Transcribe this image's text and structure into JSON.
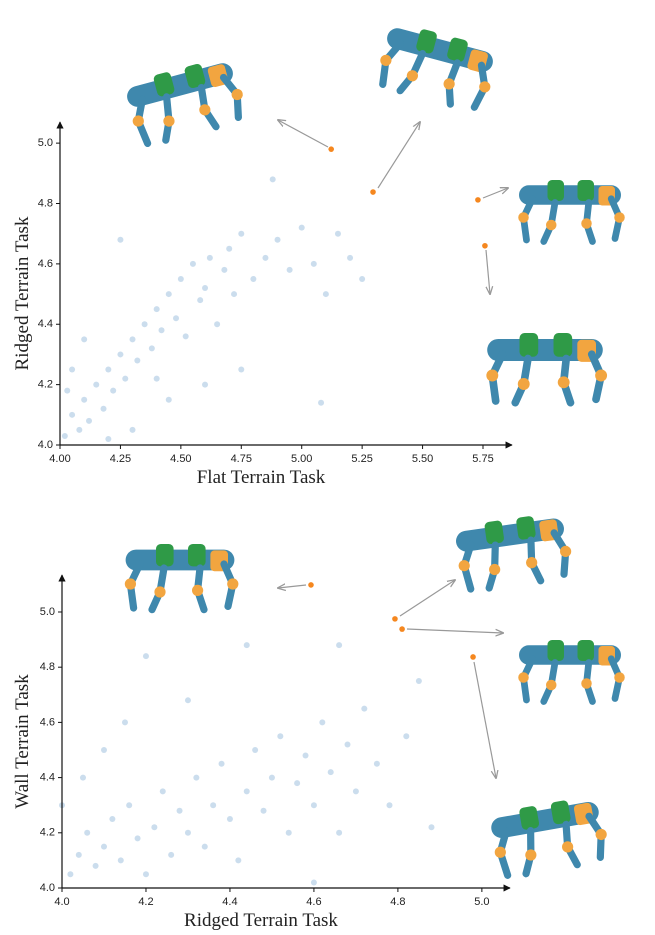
{
  "chart_data": [
    {
      "type": "scatter",
      "x_label": "Flat Terrain Task",
      "y_label": "Ridged Terrain Task",
      "xlim": [
        4.0,
        5.87
      ],
      "ylim": [
        4.0,
        5.07
      ],
      "xticks": [
        {
          "value": 4.0,
          "label": "4.00"
        },
        {
          "value": 4.25,
          "label": "4.25"
        },
        {
          "value": 4.5,
          "label": "4.50"
        },
        {
          "value": 4.75,
          "label": "4.75"
        },
        {
          "value": 5.0,
          "label": "5.00"
        },
        {
          "value": 5.25,
          "label": "5.25"
        },
        {
          "value": 5.5,
          "label": "5.50"
        },
        {
          "value": 5.75,
          "label": "5.75"
        }
      ],
      "yticks": [
        {
          "value": 4.0,
          "label": "4.0"
        },
        4.2,
        4.4,
        4.6,
        4.8,
        {
          "value": 5.0,
          "label": "5.0"
        }
      ],
      "series": [
        {
          "color": "#7eaad2",
          "x": [
            4.02,
            4.05,
            4.08,
            4.1,
            4.12,
            4.15,
            4.18,
            4.2,
            4.22,
            4.25,
            4.27,
            4.3,
            4.32,
            4.35,
            4.38,
            4.4,
            4.42,
            4.45,
            4.48,
            4.5,
            4.52,
            4.55,
            4.58,
            4.6,
            4.62,
            4.65,
            4.68,
            4.7,
            4.72,
            4.75,
            4.8,
            4.85,
            4.9,
            4.95,
            5.0,
            5.05,
            5.1,
            5.15,
            5.2,
            5.25,
            4.05,
            4.1,
            4.25,
            4.3,
            4.45,
            4.6,
            4.75,
            4.88,
            5.08,
            4.03,
            4.2,
            4.4
          ],
          "y": [
            4.03,
            4.1,
            4.05,
            4.15,
            4.08,
            4.2,
            4.12,
            4.25,
            4.18,
            4.3,
            4.22,
            4.35,
            4.28,
            4.4,
            4.32,
            4.45,
            4.38,
            4.5,
            4.42,
            4.55,
            4.36,
            4.6,
            4.48,
            4.52,
            4.62,
            4.4,
            4.58,
            4.65,
            4.5,
            4.7,
            4.55,
            4.62,
            4.68,
            4.58,
            4.72,
            4.6,
            4.5,
            4.7,
            4.62,
            4.55,
            4.25,
            4.35,
            4.68,
            4.05,
            4.15,
            4.2,
            4.25,
            4.88,
            4.14,
            4.18,
            4.02,
            4.22
          ]
        },
        {
          "color": "#f5871f",
          "x": [
            5.122,
            5.295,
            5.729,
            5.758
          ],
          "y": [
            4.98,
            4.838,
            4.812,
            4.66
          ]
        }
      ]
    },
    {
      "type": "scatter",
      "x_label": "Ridged Terrain Task",
      "y_label": "Wall Terrain Task",
      "xlim": [
        4.0,
        5.067
      ],
      "ylim": [
        4.0,
        5.134
      ],
      "xticks": [
        {
          "value": 4.0,
          "label": "4.0"
        },
        4.2,
        4.4,
        4.6,
        4.8,
        {
          "value": 5.0,
          "label": "5.0"
        }
      ],
      "yticks": [
        {
          "value": 4.0,
          "label": "4.0"
        },
        4.2,
        4.4,
        4.6,
        4.8,
        {
          "value": 5.0,
          "label": "5.0"
        }
      ],
      "series": [
        {
          "color": "#7eaad2",
          "x": [
            4.02,
            4.04,
            4.06,
            4.08,
            4.1,
            4.12,
            4.14,
            4.16,
            4.18,
            4.2,
            4.22,
            4.24,
            4.26,
            4.28,
            4.3,
            4.32,
            4.34,
            4.36,
            4.38,
            4.4,
            4.42,
            4.44,
            4.46,
            4.48,
            4.5,
            4.52,
            4.54,
            4.56,
            4.58,
            4.6,
            4.62,
            4.64,
            4.66,
            4.68,
            4.7,
            4.72,
            4.75,
            4.78,
            4.82,
            4.85,
            4.88,
            4.1,
            4.2,
            4.05,
            4.15,
            4.3,
            4.44,
            4.6,
            4.66,
            4.0
          ],
          "y": [
            4.05,
            4.12,
            4.2,
            4.08,
            4.15,
            4.25,
            4.1,
            4.3,
            4.18,
            4.05,
            4.22,
            4.35,
            4.12,
            4.28,
            4.2,
            4.4,
            4.15,
            4.3,
            4.45,
            4.25,
            4.1,
            4.35,
            4.5,
            4.28,
            4.4,
            4.55,
            4.2,
            4.38,
            4.48,
            4.3,
            4.6,
            4.42,
            4.2,
            4.52,
            4.35,
            4.65,
            4.45,
            4.3,
            4.55,
            4.75,
            4.22,
            4.5,
            4.84,
            4.4,
            4.6,
            4.68,
            4.88,
            4.02,
            4.88,
            4.3
          ]
        },
        {
          "color": "#f5871f",
          "x": [
            4.593,
            4.793,
            4.81,
            4.979
          ],
          "y": [
            5.098,
            4.975,
            4.938,
            4.837
          ]
        }
      ]
    }
  ]
}
